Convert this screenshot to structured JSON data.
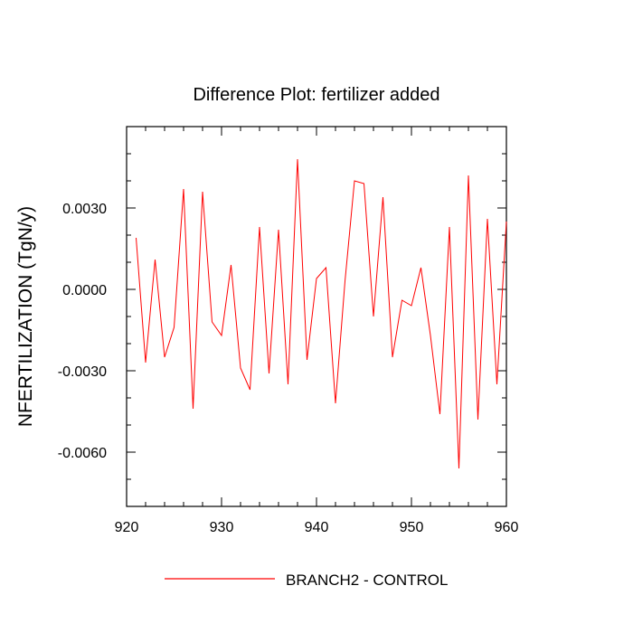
{
  "chart_data": {
    "type": "line",
    "title": "Difference Plot: fertilizer added",
    "xlabel": "",
    "ylabel": "NFERTILIZATION  (TgN/y)",
    "xlim": [
      920,
      960
    ],
    "ylim": [
      -0.008,
      0.006
    ],
    "x_ticks": [
      920,
      930,
      940,
      950,
      960
    ],
    "x_tick_labels": [
      "920",
      "930",
      "940",
      "950",
      "960"
    ],
    "y_ticks": [
      -0.006,
      -0.003,
      0.0,
      0.003
    ],
    "y_tick_labels": [
      "-0.0060",
      "-0.0030",
      "0.0000",
      "0.0030"
    ],
    "grid": false,
    "legend": "bottom-center",
    "series": [
      {
        "name": "BRANCH2 - CONTROL",
        "color": "#ff0000",
        "x": [
          921,
          922,
          923,
          924,
          925,
          926,
          927,
          928,
          929,
          930,
          931,
          932,
          933,
          934,
          935,
          936,
          937,
          938,
          939,
          940,
          941,
          942,
          943,
          944,
          945,
          946,
          947,
          948,
          949,
          950,
          951,
          952,
          953,
          954,
          955,
          956,
          957,
          958,
          959,
          960
        ],
        "y": [
          0.0019,
          -0.0027,
          0.0011,
          -0.0025,
          -0.0014,
          0.0037,
          -0.0044,
          0.0036,
          -0.0012,
          -0.0017,
          0.0009,
          -0.0029,
          -0.0037,
          0.0023,
          -0.0031,
          0.0022,
          -0.0035,
          0.0048,
          -0.0026,
          0.0004,
          0.0008,
          -0.0042,
          0.0003,
          0.004,
          0.0039,
          -0.001,
          0.0034,
          -0.0025,
          -0.0004,
          -0.0006,
          0.0008,
          -0.0017,
          -0.0046,
          0.0023,
          -0.0066,
          0.0042,
          -0.0048,
          0.0026,
          -0.0035,
          0.0025
        ]
      }
    ]
  }
}
